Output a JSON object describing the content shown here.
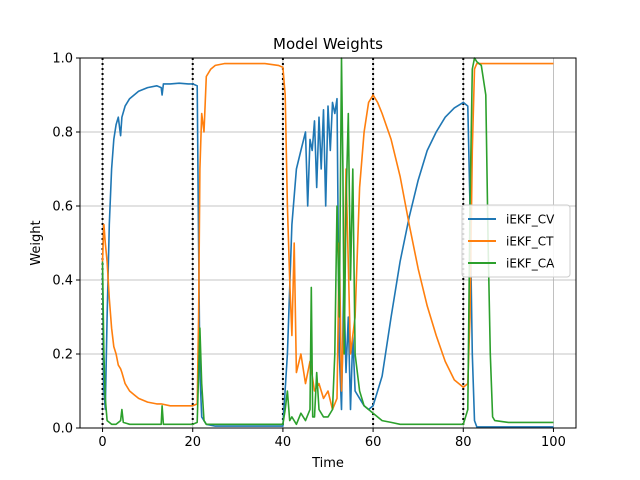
{
  "chart_data": {
    "type": "line",
    "title": "Model Weights",
    "xlabel": "Time",
    "ylabel": "Weight",
    "xlim": [
      -5,
      105
    ],
    "ylim": [
      0,
      1
    ],
    "xticks": [
      0,
      20,
      40,
      60,
      80,
      100
    ],
    "yticks": [
      0.0,
      0.2,
      0.4,
      0.6,
      0.8,
      1.0
    ],
    "ytick_labels": [
      "0.0",
      "0.2",
      "0.4",
      "0.6",
      "0.8",
      "1.0"
    ],
    "xtick_labels": [
      "0",
      "20",
      "40",
      "60",
      "80",
      "100"
    ],
    "grid": "horizontal and vertical at ticks",
    "legend_placement": "center-right",
    "vertical_markers": [
      0,
      20,
      40,
      60,
      80
    ],
    "series": [
      {
        "name": "iEKF_CV",
        "color": "#1f77b4",
        "points": [
          [
            0,
            0.42
          ],
          [
            0.3,
            0.1
          ],
          [
            0.6,
            0.05
          ],
          [
            1,
            0.3
          ],
          [
            1.5,
            0.55
          ],
          [
            2,
            0.7
          ],
          [
            2.5,
            0.78
          ],
          [
            3,
            0.82
          ],
          [
            3.5,
            0.84
          ],
          [
            4,
            0.79
          ],
          [
            4.3,
            0.84
          ],
          [
            5,
            0.87
          ],
          [
            6,
            0.89
          ],
          [
            7,
            0.9
          ],
          [
            8,
            0.91
          ],
          [
            10,
            0.92
          ],
          [
            12,
            0.925
          ],
          [
            13,
            0.92
          ],
          [
            13.2,
            0.9
          ],
          [
            13.5,
            0.93
          ],
          [
            15,
            0.93
          ],
          [
            17,
            0.932
          ],
          [
            19,
            0.93
          ],
          [
            20,
            0.93
          ],
          [
            21,
            0.925
          ],
          [
            21.3,
            0.5
          ],
          [
            21.6,
            0.15
          ],
          [
            22,
            0.03
          ],
          [
            23,
            0.01
          ],
          [
            25,
            0.005
          ],
          [
            30,
            0.005
          ],
          [
            35,
            0.005
          ],
          [
            39,
            0.005
          ],
          [
            40,
            0.005
          ],
          [
            41,
            0.2
          ],
          [
            42,
            0.55
          ],
          [
            43,
            0.7
          ],
          [
            44,
            0.75
          ],
          [
            45,
            0.8
          ],
          [
            45.5,
            0.6
          ],
          [
            46,
            0.78
          ],
          [
            46.5,
            0.75
          ],
          [
            47,
            0.83
          ],
          [
            47.5,
            0.65
          ],
          [
            48,
            0.84
          ],
          [
            48.5,
            0.7
          ],
          [
            49,
            0.86
          ],
          [
            49.5,
            0.6
          ],
          [
            50,
            0.87
          ],
          [
            50.5,
            0.75
          ],
          [
            51,
            0.88
          ],
          [
            51.5,
            0.85
          ],
          [
            52,
            0.89
          ],
          [
            52.5,
            0.2
          ],
          [
            53,
            0.05
          ],
          [
            53.5,
            0.4
          ],
          [
            54,
            0.15
          ],
          [
            54.5,
            0.3
          ],
          [
            55,
            0.05
          ],
          [
            55.5,
            0.25
          ],
          [
            56,
            0.1
          ],
          [
            57,
            0.08
          ],
          [
            58,
            0.06
          ],
          [
            59,
            0.05
          ],
          [
            60,
            0.06
          ],
          [
            62,
            0.14
          ],
          [
            64,
            0.3
          ],
          [
            66,
            0.45
          ],
          [
            68,
            0.57
          ],
          [
            70,
            0.67
          ],
          [
            72,
            0.75
          ],
          [
            74,
            0.8
          ],
          [
            76,
            0.84
          ],
          [
            78,
            0.865
          ],
          [
            80,
            0.88
          ],
          [
            81,
            0.87
          ],
          [
            81.5,
            0.6
          ],
          [
            82,
            0.2
          ],
          [
            82.5,
            0.02
          ],
          [
            83,
            0.003
          ],
          [
            85,
            0.003
          ],
          [
            90,
            0.003
          ],
          [
            95,
            0.003
          ],
          [
            100,
            0.003
          ]
        ]
      },
      {
        "name": "iEKF_CT",
        "color": "#ff7f0e",
        "points": [
          [
            0,
            0.45
          ],
          [
            0.3,
            0.55
          ],
          [
            0.6,
            0.5
          ],
          [
            1,
            0.45
          ],
          [
            1.5,
            0.35
          ],
          [
            2,
            0.27
          ],
          [
            2.5,
            0.22
          ],
          [
            3,
            0.2
          ],
          [
            3.5,
            0.17
          ],
          [
            4,
            0.16
          ],
          [
            4.3,
            0.15
          ],
          [
            5,
            0.12
          ],
          [
            6,
            0.1
          ],
          [
            7,
            0.09
          ],
          [
            8,
            0.08
          ],
          [
            10,
            0.07
          ],
          [
            12,
            0.065
          ],
          [
            13,
            0.065
          ],
          [
            15,
            0.06
          ],
          [
            17,
            0.06
          ],
          [
            19,
            0.06
          ],
          [
            20,
            0.06
          ],
          [
            21,
            0.065
          ],
          [
            21.3,
            0.3
          ],
          [
            21.6,
            0.7
          ],
          [
            22,
            0.85
          ],
          [
            22.5,
            0.8
          ],
          [
            23,
            0.95
          ],
          [
            24,
            0.97
          ],
          [
            25,
            0.98
          ],
          [
            27,
            0.985
          ],
          [
            30,
            0.985
          ],
          [
            33,
            0.985
          ],
          [
            36,
            0.985
          ],
          [
            39,
            0.98
          ],
          [
            40,
            0.975
          ],
          [
            40.5,
            0.9
          ],
          [
            41,
            0.6
          ],
          [
            41.5,
            0.4
          ],
          [
            42,
            0.25
          ],
          [
            42.5,
            0.5
          ],
          [
            43,
            0.15
          ],
          [
            44,
            0.2
          ],
          [
            45,
            0.12
          ],
          [
            46,
            0.18
          ],
          [
            47,
            0.1
          ],
          [
            48,
            0.12
          ],
          [
            49,
            0.08
          ],
          [
            50,
            0.1
          ],
          [
            51,
            0.05
          ],
          [
            52,
            0.08
          ],
          [
            52.5,
            0.5
          ],
          [
            53,
            0.1
          ],
          [
            53.5,
            0.3
          ],
          [
            54,
            0.7
          ],
          [
            55,
            0.2
          ],
          [
            56,
            0.3
          ],
          [
            57,
            0.65
          ],
          [
            58,
            0.8
          ],
          [
            59,
            0.88
          ],
          [
            60,
            0.9
          ],
          [
            61,
            0.88
          ],
          [
            62,
            0.85
          ],
          [
            64,
            0.78
          ],
          [
            66,
            0.68
          ],
          [
            68,
            0.55
          ],
          [
            70,
            0.43
          ],
          [
            72,
            0.33
          ],
          [
            74,
            0.25
          ],
          [
            76,
            0.18
          ],
          [
            78,
            0.13
          ],
          [
            80,
            0.11
          ],
          [
            81,
            0.12
          ],
          [
            81.5,
            0.3
          ],
          [
            82,
            0.75
          ],
          [
            82.5,
            0.97
          ],
          [
            83,
            0.985
          ],
          [
            85,
            0.985
          ],
          [
            90,
            0.985
          ],
          [
            95,
            0.985
          ],
          [
            100,
            0.985
          ]
        ]
      },
      {
        "name": "iEKF_CA",
        "color": "#2ca02c",
        "points": [
          [
            0,
            0.45
          ],
          [
            0.3,
            0.2
          ],
          [
            0.6,
            0.08
          ],
          [
            1,
            0.02
          ],
          [
            1.5,
            0.015
          ],
          [
            2,
            0.01
          ],
          [
            3,
            0.01
          ],
          [
            4,
            0.02
          ],
          [
            4.3,
            0.05
          ],
          [
            4.6,
            0.015
          ],
          [
            6,
            0.01
          ],
          [
            8,
            0.01
          ],
          [
            10,
            0.01
          ],
          [
            12,
            0.01
          ],
          [
            13,
            0.01
          ],
          [
            13.2,
            0.06
          ],
          [
            13.5,
            0.01
          ],
          [
            15,
            0.01
          ],
          [
            17,
            0.01
          ],
          [
            19,
            0.01
          ],
          [
            20,
            0.01
          ],
          [
            21,
            0.015
          ],
          [
            21.3,
            0.15
          ],
          [
            21.6,
            0.27
          ],
          [
            22,
            0.12
          ],
          [
            22.5,
            0.02
          ],
          [
            23,
            0.01
          ],
          [
            25,
            0.01
          ],
          [
            30,
            0.01
          ],
          [
            35,
            0.01
          ],
          [
            39,
            0.01
          ],
          [
            40,
            0.01
          ],
          [
            40.5,
            0.05
          ],
          [
            41,
            0.1
          ],
          [
            41.5,
            0.02
          ],
          [
            42,
            0.03
          ],
          [
            43,
            0.01
          ],
          [
            44,
            0.04
          ],
          [
            45,
            0.02
          ],
          [
            46,
            0.05
          ],
          [
            46.3,
            0.38
          ],
          [
            46.6,
            0.03
          ],
          [
            47,
            0.03
          ],
          [
            47.5,
            0.15
          ],
          [
            48,
            0.05
          ],
          [
            49,
            0.03
          ],
          [
            50,
            0.03
          ],
          [
            51,
            0.05
          ],
          [
            51.5,
            0.2
          ],
          [
            52,
            0.6
          ],
          [
            52.5,
            0.3
          ],
          [
            53,
            1.0
          ],
          [
            53.3,
            0.7
          ],
          [
            53.6,
            0.2
          ],
          [
            54,
            0.6
          ],
          [
            54.5,
            0.85
          ],
          [
            55,
            0.4
          ],
          [
            55.5,
            0.7
          ],
          [
            56,
            0.2
          ],
          [
            57,
            0.1
          ],
          [
            58,
            0.06
          ],
          [
            59,
            0.05
          ],
          [
            60,
            0.04
          ],
          [
            62,
            0.02
          ],
          [
            64,
            0.015
          ],
          [
            66,
            0.01
          ],
          [
            68,
            0.01
          ],
          [
            70,
            0.01
          ],
          [
            72,
            0.01
          ],
          [
            74,
            0.01
          ],
          [
            76,
            0.01
          ],
          [
            78,
            0.01
          ],
          [
            80,
            0.01
          ],
          [
            81,
            0.05
          ],
          [
            81.5,
            0.6
          ],
          [
            82,
            0.97
          ],
          [
            82.5,
            1.0
          ],
          [
            83,
            0.99
          ],
          [
            84,
            0.98
          ],
          [
            85,
            0.9
          ],
          [
            85.5,
            0.5
          ],
          [
            86,
            0.2
          ],
          [
            86.5,
            0.03
          ],
          [
            87,
            0.02
          ],
          [
            90,
            0.015
          ],
          [
            95,
            0.015
          ],
          [
            100,
            0.015
          ]
        ]
      }
    ]
  }
}
